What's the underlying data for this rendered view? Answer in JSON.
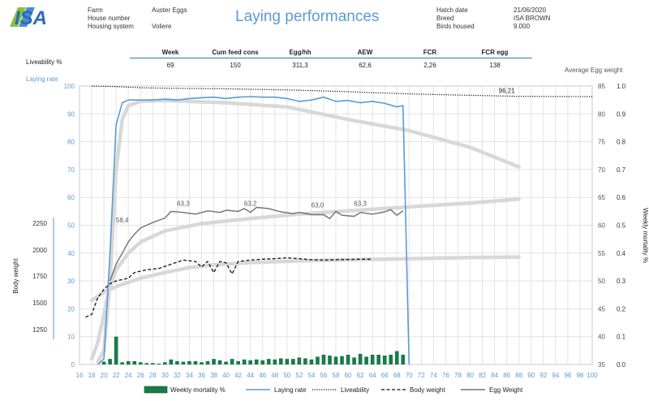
{
  "header": {
    "logo_text": "ISA",
    "title": "Laying performances",
    "left_info": [
      {
        "label": "Farm",
        "value": "Auster Eggs"
      },
      {
        "label": "House number",
        "value": ""
      },
      {
        "label": "Housing system",
        "value": "Voliere"
      }
    ],
    "right_info": [
      {
        "label": "Hatch date",
        "value": "21/06/2020"
      },
      {
        "label": "Breed",
        "value": "ISA BROWN"
      },
      {
        "label": "Birds housed",
        "value": "9.000"
      }
    ]
  },
  "kpis": {
    "headers": [
      "Week",
      "Cum feed cons",
      "Egg/hh",
      "AEW",
      "FCR",
      "FCR egg"
    ],
    "values": [
      "69",
      "150",
      "311,3",
      "62,6",
      "2,26",
      "138"
    ]
  },
  "chart_data": {
    "type": "line",
    "labels": {
      "liveability": "Liveability %",
      "laying_rate": "Laying rate",
      "body_weight": "Body weight",
      "average_egg_weight": "Average Egg weight",
      "weekly_mortality": "Weekly mortality %"
    },
    "x_ticks": [
      16,
      18,
      20,
      22,
      24,
      26,
      28,
      30,
      32,
      34,
      36,
      38,
      40,
      42,
      44,
      46,
      48,
      50,
      52,
      54,
      56,
      58,
      60,
      62,
      64,
      66,
      68,
      70,
      72,
      74,
      76,
      78,
      80,
      82,
      84,
      86,
      88,
      90,
      92,
      94,
      96,
      98,
      100
    ],
    "xlim": [
      16,
      100
    ],
    "left_axis": {
      "ticks": [
        0,
        10,
        20,
        30,
        40,
        50,
        60,
        70,
        80,
        90,
        100
      ],
      "lim": [
        0,
        100
      ]
    },
    "body_weight_axis": {
      "ticks": [
        1250,
        1500,
        1750,
        2000,
        2250
      ]
    },
    "egg_weight_axis": {
      "ticks": [
        35,
        40,
        45,
        50,
        55,
        60,
        65,
        70,
        75,
        80,
        85
      ],
      "lim": [
        35,
        85
      ]
    },
    "mortality_axis": {
      "ticks": [
        "0.0",
        "0.1",
        "0.2",
        "0.3",
        "0.4",
        "0.5",
        "0.6",
        "0.7",
        "0.8",
        "0.9",
        "1.0"
      ],
      "lim": [
        0,
        1
      ]
    },
    "annotations": [
      {
        "x": 23,
        "y": 60.5,
        "text": "58,4"
      },
      {
        "x": 33,
        "y": 63.5,
        "text": "63,3"
      },
      {
        "x": 44,
        "y": 63.5,
        "text": "63,2"
      },
      {
        "x": 55,
        "y": 63.2,
        "text": "63,0"
      },
      {
        "x": 62,
        "y": 63.5,
        "text": "63,3"
      },
      {
        "x": 86,
        "y": 86.2,
        "text": "96,21"
      }
    ],
    "series": [
      {
        "name": "Laying rate",
        "axis": "left",
        "color": "#5b9bd5",
        "points": [
          [
            19,
            0
          ],
          [
            20,
            2
          ],
          [
            21,
            40
          ],
          [
            22,
            86
          ],
          [
            23,
            94
          ],
          [
            24,
            95
          ],
          [
            26,
            95
          ],
          [
            28,
            95
          ],
          [
            30,
            95.3
          ],
          [
            32,
            95
          ],
          [
            34,
            95.5
          ],
          [
            36,
            95.8
          ],
          [
            38,
            96
          ],
          [
            40,
            95.5
          ],
          [
            42,
            96
          ],
          [
            44,
            96.2
          ],
          [
            46,
            96
          ],
          [
            48,
            96
          ],
          [
            50,
            95.5
          ],
          [
            52,
            94.5
          ],
          [
            54,
            95
          ],
          [
            56,
            96
          ],
          [
            58,
            94.5
          ],
          [
            60,
            94.8
          ],
          [
            62,
            94
          ],
          [
            64,
            94.5
          ],
          [
            66,
            93.8
          ],
          [
            68,
            92.5
          ],
          [
            69,
            93
          ],
          [
            70,
            0
          ]
        ]
      },
      {
        "name": "Egg Weight",
        "axis": "egg_weight",
        "color": "#707070",
        "points": [
          [
            21,
            50
          ],
          [
            22,
            53
          ],
          [
            23,
            55
          ],
          [
            24,
            57
          ],
          [
            25,
            58.4
          ],
          [
            26,
            59.5
          ],
          [
            28,
            60.5
          ],
          [
            30,
            61.3
          ],
          [
            31,
            62.5
          ],
          [
            33,
            62.3
          ],
          [
            35,
            62.0
          ],
          [
            37,
            62.6
          ],
          [
            39,
            62.3
          ],
          [
            40,
            62.7
          ],
          [
            42,
            62.5
          ],
          [
            43,
            63.0
          ],
          [
            44,
            62.3
          ],
          [
            45,
            63.2
          ],
          [
            47,
            63.0
          ],
          [
            49,
            62.4
          ],
          [
            51,
            62.1
          ],
          [
            52,
            62.3
          ],
          [
            54,
            61.9
          ],
          [
            56,
            61.9
          ],
          [
            57,
            61.2
          ],
          [
            58,
            62.5
          ],
          [
            59,
            61.8
          ],
          [
            61,
            61.6
          ],
          [
            62,
            62.3
          ],
          [
            64,
            62.0
          ],
          [
            66,
            62.4
          ],
          [
            67,
            62.8
          ],
          [
            68,
            61.8
          ],
          [
            69,
            62.6
          ]
        ]
      },
      {
        "name": "Liveability",
        "axis": "left",
        "color": "#111111",
        "points": [
          [
            18,
            100
          ],
          [
            22,
            99.8
          ],
          [
            26,
            99.4
          ],
          [
            30,
            99.2
          ],
          [
            40,
            99.0
          ],
          [
            50,
            98.6
          ],
          [
            60,
            98.0
          ],
          [
            64,
            97.6
          ],
          [
            70,
            97.2
          ],
          [
            75,
            96.9
          ],
          [
            88,
            96.3
          ],
          [
            100,
            96.21
          ]
        ]
      },
      {
        "name": "Body weight",
        "axis": "left",
        "color": "#111111",
        "points": [
          [
            17,
            17
          ],
          [
            18,
            18
          ],
          [
            19,
            24
          ],
          [
            20,
            27
          ],
          [
            21,
            29
          ],
          [
            22,
            30
          ],
          [
            24,
            31
          ],
          [
            25,
            33
          ],
          [
            27,
            34
          ],
          [
            29,
            34.5
          ],
          [
            31,
            36
          ],
          [
            33,
            37.5
          ],
          [
            35,
            37
          ],
          [
            36,
            35
          ],
          [
            37,
            37
          ],
          [
            38,
            33
          ],
          [
            39,
            37
          ],
          [
            40,
            36.5
          ],
          [
            41,
            32.5
          ],
          [
            42,
            37
          ],
          [
            44,
            37.5
          ],
          [
            46,
            37.8
          ],
          [
            48,
            38
          ],
          [
            50,
            38.3
          ],
          [
            52,
            38
          ],
          [
            54,
            37.6
          ],
          [
            56,
            37.5
          ],
          [
            58,
            37.6
          ],
          [
            60,
            37.7
          ],
          [
            62,
            37.8
          ],
          [
            64,
            37.8
          ]
        ]
      }
    ],
    "standards": [
      {
        "name": "Laying rate standard",
        "axis": "left",
        "points": [
          [
            19,
            1
          ],
          [
            20,
            5
          ],
          [
            21,
            30
          ],
          [
            22,
            70
          ],
          [
            23,
            88
          ],
          [
            24,
            93
          ],
          [
            26,
            94.5
          ],
          [
            30,
            94.8
          ],
          [
            40,
            94
          ],
          [
            50,
            92.5
          ],
          [
            60,
            88
          ],
          [
            70,
            84
          ],
          [
            80,
            78
          ],
          [
            88,
            71
          ]
        ]
      },
      {
        "name": "Egg weight standard",
        "axis": "egg_weight",
        "points": [
          [
            18,
            36
          ],
          [
            19,
            39
          ],
          [
            20,
            44
          ],
          [
            21,
            49
          ],
          [
            22,
            52
          ],
          [
            24,
            55
          ],
          [
            26,
            57
          ],
          [
            30,
            59
          ],
          [
            36,
            60.3
          ],
          [
            44,
            61.2
          ],
          [
            52,
            62
          ],
          [
            60,
            62.6
          ],
          [
            70,
            63.3
          ],
          [
            80,
            64
          ],
          [
            88,
            64.7
          ]
        ]
      },
      {
        "name": "Body weight standard",
        "axis": "left",
        "points": [
          [
            18,
            23
          ],
          [
            20,
            26
          ],
          [
            22,
            28
          ],
          [
            26,
            31
          ],
          [
            30,
            33
          ],
          [
            34,
            34.8
          ],
          [
            38,
            35.8
          ],
          [
            44,
            36.6
          ],
          [
            52,
            37.2
          ],
          [
            60,
            37.6
          ],
          [
            70,
            38
          ],
          [
            80,
            38.4
          ],
          [
            88,
            38.6
          ]
        ]
      }
    ],
    "mortality": {
      "axis": "mortality",
      "name": "Weekly mortality %",
      "color": "#1a7a4a",
      "values": [
        [
          20,
          0.01
        ],
        [
          21,
          0.02
        ],
        [
          22,
          0.1
        ],
        [
          23,
          0.008
        ],
        [
          24,
          0.012
        ],
        [
          25,
          0.012
        ],
        [
          26,
          0.008
        ],
        [
          27,
          0.005
        ],
        [
          28,
          0.005
        ],
        [
          29,
          0.003
        ],
        [
          30,
          0.008
        ],
        [
          31,
          0.018
        ],
        [
          32,
          0.012
        ],
        [
          33,
          0.01
        ],
        [
          34,
          0.012
        ],
        [
          35,
          0.012
        ],
        [
          36,
          0.008
        ],
        [
          37,
          0.012
        ],
        [
          38,
          0.02
        ],
        [
          39,
          0.015
        ],
        [
          40,
          0.01
        ],
        [
          41,
          0.02
        ],
        [
          42,
          0.012
        ],
        [
          43,
          0.018
        ],
        [
          44,
          0.015
        ],
        [
          45,
          0.018
        ],
        [
          46,
          0.015
        ],
        [
          47,
          0.02
        ],
        [
          48,
          0.018
        ],
        [
          49,
          0.022
        ],
        [
          50,
          0.02
        ],
        [
          51,
          0.02
        ],
        [
          52,
          0.025
        ],
        [
          53,
          0.022
        ],
        [
          54,
          0.018
        ],
        [
          55,
          0.028
        ],
        [
          56,
          0.035
        ],
        [
          57,
          0.032
        ],
        [
          58,
          0.028
        ],
        [
          59,
          0.03
        ],
        [
          60,
          0.035
        ],
        [
          61,
          0.025
        ],
        [
          62,
          0.038
        ],
        [
          63,
          0.028
        ],
        [
          64,
          0.035
        ],
        [
          65,
          0.035
        ],
        [
          66,
          0.032
        ],
        [
          67,
          0.035
        ],
        [
          68,
          0.048
        ],
        [
          69,
          0.035
        ]
      ]
    },
    "legend_position": "bottom",
    "grid": true
  }
}
